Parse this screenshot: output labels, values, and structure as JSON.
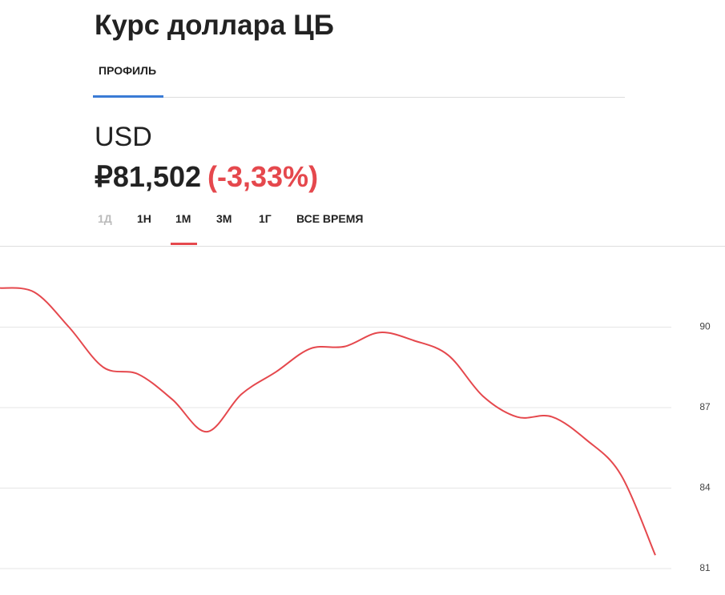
{
  "header": {
    "title": "Курс доллара ЦБ",
    "tab": "ПРОФИЛЬ"
  },
  "quote": {
    "ticker": "USD",
    "price": "₽81,502",
    "change": "(-3,33%)"
  },
  "periods": [
    "1Д",
    "1Н",
    "1М",
    "3М",
    "1Г",
    "ВСЕ ВРЕМЯ"
  ],
  "chart_data": {
    "type": "line",
    "categories": [
      null,
      null,
      null,
      null,
      null,
      null,
      null,
      null,
      null,
      null,
      null,
      null,
      null,
      null,
      null,
      null,
      null,
      null,
      null,
      null
    ],
    "series": [
      {
        "color": "#e5484d",
        "values": [
          91.46,
          91.3,
          90.0,
          88.5,
          88.25,
          87.3,
          86.1,
          87.5,
          88.33,
          89.2,
          89.28,
          89.8,
          89.5,
          88.95,
          87.43,
          86.65,
          86.66,
          85.8,
          84.5,
          81.5
        ]
      }
    ],
    "ylim": [
      81,
      93
    ],
    "yticks": [
      81,
      84,
      87,
      90
    ],
    "grid": true
  }
}
